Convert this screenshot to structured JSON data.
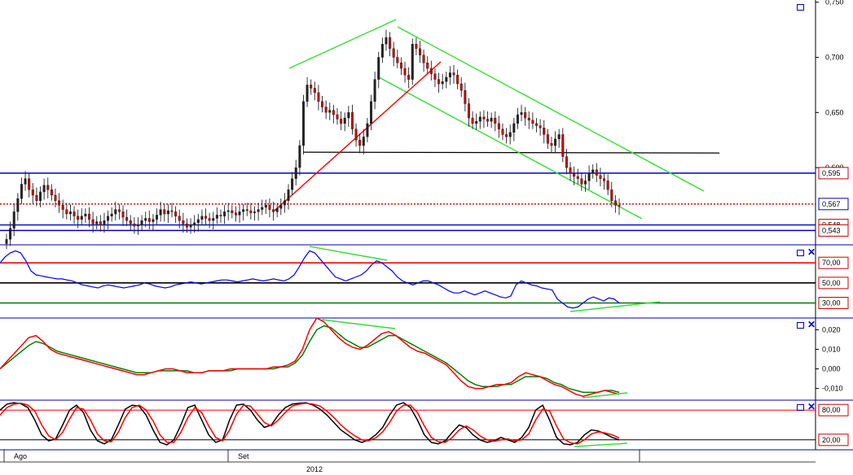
{
  "chart_data": [
    {
      "type": "candlestick",
      "panel": "price",
      "y_ticks": [
        "0,750",
        "0,700",
        "0,650",
        "0,600"
      ],
      "ylim": [
        0.53,
        0.752
      ],
      "price_tags": [
        {
          "label": "0,595",
          "value": 0.595,
          "color": "#cc0000",
          "line_color": "#0000cc",
          "line_style": "solid"
        },
        {
          "label": "0,567",
          "value": 0.567,
          "color": "#0000cc",
          "line_color": "#cc0000",
          "line_style": "dotted"
        },
        {
          "label": "0,548",
          "value": 0.548,
          "color": "#cc0000",
          "line_color": "#0000cc",
          "line_style": "solid"
        },
        {
          "label": "0,543",
          "value": 0.543,
          "color": "#cc0000",
          "line_color": "#0000cc",
          "line_style": "solid"
        }
      ],
      "support_line": {
        "value": 0.614,
        "color": "#000000"
      },
      "close_series": [
        0.535,
        0.545,
        0.56,
        0.572,
        0.585,
        0.59,
        0.58,
        0.575,
        0.57,
        0.578,
        0.584,
        0.58,
        0.575,
        0.57,
        0.566,
        0.562,
        0.558,
        0.56,
        0.556,
        0.553,
        0.556,
        0.558,
        0.553,
        0.549,
        0.551,
        0.548,
        0.552,
        0.556,
        0.558,
        0.562,
        0.56,
        0.555,
        0.552,
        0.549,
        0.547,
        0.548,
        0.552,
        0.554,
        0.551,
        0.553,
        0.557,
        0.562,
        0.558,
        0.561,
        0.56,
        0.556,
        0.552,
        0.549,
        0.546,
        0.548,
        0.55,
        0.553,
        0.556,
        0.554,
        0.552,
        0.554,
        0.557,
        0.556,
        0.56,
        0.561,
        0.559,
        0.557,
        0.56,
        0.562,
        0.561,
        0.559,
        0.56,
        0.562,
        0.564,
        0.566,
        0.562,
        0.56,
        0.563,
        0.566,
        0.57,
        0.58,
        0.59,
        0.6,
        0.62,
        0.66,
        0.675,
        0.672,
        0.668,
        0.66,
        0.655,
        0.65,
        0.652,
        0.648,
        0.644,
        0.64,
        0.645,
        0.65,
        0.635,
        0.625,
        0.62,
        0.628,
        0.64,
        0.66,
        0.68,
        0.7,
        0.712,
        0.718,
        0.708,
        0.7,
        0.695,
        0.69,
        0.684,
        0.68,
        0.712,
        0.708,
        0.702,
        0.695,
        0.69,
        0.685,
        0.68,
        0.676,
        0.678,
        0.682,
        0.686,
        0.684,
        0.676,
        0.67,
        0.658,
        0.645,
        0.64,
        0.642,
        0.646,
        0.644,
        0.642,
        0.645,
        0.64,
        0.635,
        0.63,
        0.628,
        0.632,
        0.64,
        0.648,
        0.65,
        0.645,
        0.643,
        0.64,
        0.638,
        0.636,
        0.63,
        0.622,
        0.62,
        0.626,
        0.63,
        0.61,
        0.6,
        0.595,
        0.592,
        0.59,
        0.585,
        0.588,
        0.595,
        0.598,
        0.593,
        0.59,
        0.588,
        0.58,
        0.57,
        0.566,
        0.565
      ]
    },
    {
      "type": "line",
      "panel": "rsi",
      "levels": [
        {
          "label": "70,00",
          "value": 70,
          "color": "#ff0000"
        },
        {
          "label": "50,00",
          "value": 50,
          "color": "#000000"
        },
        {
          "label": "30,00",
          "value": 30,
          "color": "#007700"
        }
      ],
      "ylim": [
        15,
        88
      ],
      "series": [
        {
          "values": [
            70,
            76,
            80,
            82,
            80,
            72,
            62,
            58,
            57,
            56,
            55,
            54,
            54,
            53,
            52,
            50,
            48,
            47,
            46,
            45,
            47,
            48,
            47,
            46,
            45,
            46,
            47,
            48,
            50,
            49,
            47,
            46,
            45,
            46,
            48,
            49,
            50,
            51,
            50,
            49,
            50,
            51,
            52,
            53,
            53,
            52,
            51,
            52,
            53,
            54,
            53,
            52,
            53,
            54,
            53,
            52,
            54,
            58,
            66,
            75,
            82,
            80,
            74,
            68,
            62,
            56,
            54,
            52,
            54,
            56,
            58,
            62,
            68,
            72,
            70,
            66,
            62,
            56,
            52,
            50,
            48,
            50,
            52,
            52,
            50,
            48,
            45,
            42,
            40,
            40,
            42,
            40,
            38,
            40,
            42,
            40,
            38,
            36,
            35,
            37,
            48,
            52,
            50,
            48,
            47,
            45,
            44,
            43,
            34,
            30,
            26,
            25,
            26,
            30,
            34,
            36,
            34,
            32,
            35,
            34,
            30
          ],
          "color": "#0000ff"
        }
      ]
    },
    {
      "type": "line",
      "panel": "macd",
      "y_ticks": [
        "0,020",
        "0,010",
        "0,000",
        "-0,010"
      ],
      "ylim": [
        -0.016,
        0.026
      ],
      "series": [
        {
          "values": [
            0.0,
            0.004,
            0.008,
            0.012,
            0.016,
            0.017,
            0.014,
            0.01,
            0.008,
            0.007,
            0.006,
            0.005,
            0.004,
            0.003,
            0.002,
            0.001,
            0.0,
            -0.001,
            -0.002,
            -0.003,
            -0.003,
            -0.002,
            -0.001,
            0.0,
            0.0,
            -0.001,
            -0.002,
            -0.002,
            -0.002,
            -0.001,
            -0.001,
            -0.001,
            0.0,
            0.0,
            0.0,
            0.0,
            0.0,
            0.0,
            0.001,
            0.001,
            0.002,
            0.004,
            0.01,
            0.02,
            0.026,
            0.024,
            0.02,
            0.016,
            0.013,
            0.011,
            0.01,
            0.012,
            0.015,
            0.018,
            0.019,
            0.017,
            0.014,
            0.011,
            0.009,
            0.008,
            0.006,
            0.004,
            0.002,
            -0.002,
            -0.006,
            -0.009,
            -0.01,
            -0.01,
            -0.009,
            -0.008,
            -0.008,
            -0.007,
            -0.004,
            -0.002,
            -0.003,
            -0.004,
            -0.006,
            -0.008,
            -0.009,
            -0.011,
            -0.013,
            -0.014,
            -0.013,
            -0.012,
            -0.011,
            -0.012,
            -0.013
          ],
          "color": "#ff0000"
        },
        {
          "values": [
            0.0,
            0.003,
            0.006,
            0.009,
            0.012,
            0.014,
            0.013,
            0.011,
            0.009,
            0.008,
            0.007,
            0.006,
            0.005,
            0.004,
            0.003,
            0.002,
            0.001,
            0.0,
            -0.001,
            -0.002,
            -0.002,
            -0.002,
            -0.001,
            -0.001,
            -0.001,
            -0.001,
            -0.001,
            -0.002,
            -0.002,
            -0.001,
            -0.001,
            -0.001,
            -0.001,
            0.0,
            0.0,
            0.0,
            0.0,
            0.0,
            0.0,
            0.001,
            0.001,
            0.003,
            0.007,
            0.014,
            0.02,
            0.022,
            0.021,
            0.018,
            0.015,
            0.013,
            0.011,
            0.011,
            0.013,
            0.015,
            0.017,
            0.017,
            0.015,
            0.013,
            0.011,
            0.009,
            0.007,
            0.005,
            0.003,
            0.0,
            -0.003,
            -0.006,
            -0.008,
            -0.009,
            -0.009,
            -0.009,
            -0.008,
            -0.008,
            -0.006,
            -0.004,
            -0.004,
            -0.004,
            -0.005,
            -0.007,
            -0.008,
            -0.01,
            -0.011,
            -0.012,
            -0.012,
            -0.012,
            -0.011,
            -0.011,
            -0.012
          ],
          "color": "#008000"
        }
      ]
    },
    {
      "type": "line",
      "panel": "stochastic",
      "levels": [
        {
          "label": "80,00",
          "value": 80,
          "color": "#ff0000"
        },
        {
          "label": "20,00",
          "value": 20,
          "color": "#000000"
        }
      ],
      "ylim": [
        0,
        100
      ],
      "series": [
        {
          "values": [
            80,
            92,
            95,
            93,
            85,
            60,
            30,
            18,
            22,
            50,
            80,
            90,
            75,
            40,
            18,
            12,
            20,
            50,
            82,
            90,
            88,
            70,
            40,
            15,
            10,
            20,
            50,
            85,
            90,
            60,
            30,
            15,
            20,
            60,
            90,
            92,
            80,
            60,
            45,
            50,
            70,
            85,
            92,
            94,
            95,
            90,
            82,
            70,
            55,
            40,
            30,
            20,
            15,
            20,
            30,
            45,
            70,
            90,
            95,
            85,
            60,
            30,
            15,
            12,
            18,
            35,
            50,
            45,
            30,
            20,
            15,
            18,
            25,
            20,
            15,
            25,
            45,
            80,
            90,
            60,
            25,
            12,
            10,
            15,
            30,
            40,
            38,
            32,
            25,
            20
          ],
          "color": "#000000"
        },
        {
          "values": [
            70,
            85,
            92,
            94,
            90,
            78,
            50,
            28,
            20,
            35,
            62,
            85,
            82,
            60,
            32,
            18,
            16,
            35,
            65,
            85,
            90,
            80,
            58,
            30,
            15,
            15,
            35,
            65,
            85,
            75,
            48,
            25,
            18,
            40,
            72,
            90,
            88,
            72,
            55,
            48,
            60,
            75,
            88,
            92,
            94,
            92,
            88,
            78,
            65,
            50,
            38,
            28,
            20,
            18,
            24,
            36,
            55,
            78,
            90,
            90,
            75,
            48,
            25,
            16,
            15,
            25,
            40,
            48,
            40,
            28,
            20,
            17,
            20,
            22,
            18,
            20,
            32,
            60,
            82,
            78,
            48,
            22,
            14,
            12,
            20,
            32,
            36,
            34,
            30,
            24
          ],
          "color": "#ff0000"
        }
      ]
    }
  ],
  "x_axis": {
    "ticks": [
      "Ago",
      "Set"
    ],
    "year": "2012"
  },
  "colors": {
    "channel": "#33dd33",
    "trendline_up": "#ff0000",
    "panel_border": "#0000cc"
  },
  "icons": [
    "window-icon",
    "close-icon"
  ]
}
